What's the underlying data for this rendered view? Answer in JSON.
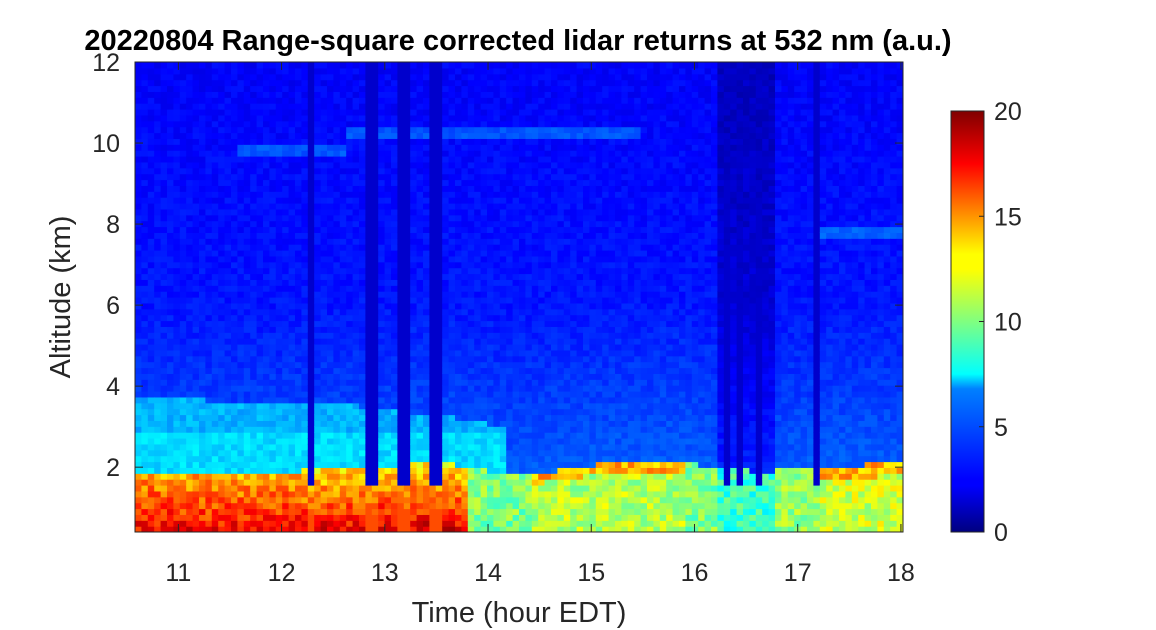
{
  "chart_data": {
    "type": "heatmap",
    "title": "20220804  Range-square corrected lidar returns at 532 nm (a.u.)",
    "xlabel": "Time (hour EDT)",
    "ylabel": "Altitude (km)",
    "xlim": [
      10.58,
      18.02
    ],
    "ylim": [
      0.4,
      12
    ],
    "xticks": [
      11,
      12,
      13,
      14,
      15,
      16,
      17,
      18
    ],
    "xtick_labels": [
      "11",
      "12",
      "13",
      "14",
      "15",
      "16",
      "17",
      "18"
    ],
    "yticks": [
      2,
      4,
      6,
      8,
      10,
      12
    ],
    "ytick_labels": [
      "2",
      "4",
      "6",
      "8",
      "10",
      "12"
    ],
    "colorbar": {
      "range": [
        0,
        20
      ],
      "ticks": [
        0,
        5,
        10,
        15,
        20
      ],
      "tick_labels": [
        "0",
        "5",
        "10",
        "15",
        "20"
      ],
      "colormap": "jet"
    },
    "boundary_layer_top_km": {
      "x": [
        10.6,
        11.0,
        11.5,
        12.0,
        12.3,
        12.6,
        13.0,
        13.4,
        13.8,
        14.2,
        14.6,
        15.0,
        15.4,
        15.8,
        16.2,
        16.6,
        17.0,
        17.5,
        18.0
      ],
      "y": [
        1.9,
        1.9,
        1.85,
        1.85,
        1.95,
        2.0,
        2.05,
        2.1,
        2.05,
        1.8,
        1.9,
        2.05,
        2.15,
        2.15,
        2.0,
        1.9,
        1.95,
        2.05,
        2.1
      ]
    },
    "residual_layer_top_km": {
      "x": [
        10.6,
        11.5,
        12.5,
        13.5,
        14.2
      ],
      "y": [
        3.7,
        3.65,
        3.6,
        3.3,
        3.0
      ]
    },
    "cirrus_layers": [
      {
        "t_start": 11.6,
        "t_end": 12.6,
        "alt_km": 9.8
      },
      {
        "t_start": 12.6,
        "t_end": 15.5,
        "alt_km": 10.3
      },
      {
        "t_start": 17.2,
        "t_end": 18.0,
        "alt_km": 7.8
      }
    ],
    "signal_dropouts_hour": [
      12.3,
      12.86,
      12.92,
      13.15,
      13.22,
      13.47,
      13.53,
      16.3,
      16.45,
      16.6,
      17.17
    ]
  }
}
